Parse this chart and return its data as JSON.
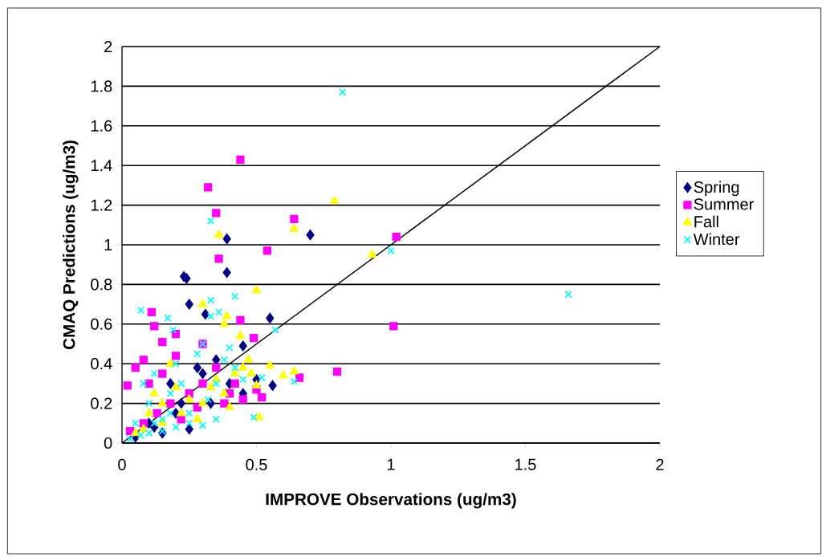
{
  "chart_data": {
    "type": "scatter",
    "xlabel": "IMPROVE Observations (ug/m3)",
    "ylabel": "CMAQ Predictions (ug/m3)",
    "xlim": [
      0,
      2
    ],
    "ylim": [
      0,
      2
    ],
    "xticks": [
      0,
      0.5,
      1,
      1.5,
      2
    ],
    "yticks": [
      0,
      0.2,
      0.4,
      0.6,
      0.8,
      1,
      1.2,
      1.4,
      1.6,
      1.8,
      2
    ],
    "grid": "y",
    "legend": "right",
    "series": [
      {
        "name": "Spring",
        "color": "#000080",
        "marker": "diamond",
        "x": [
          0.23,
          0.24,
          0.25,
          0.39,
          0.39,
          0.7,
          0.31,
          0.55,
          0.45,
          0.56,
          0.1,
          0.15,
          0.2,
          0.25,
          0.3,
          0.35,
          0.28,
          0.18,
          0.4,
          0.45,
          0.5,
          0.22,
          0.12,
          0.33,
          0.05
        ],
        "values": [
          0.84,
          0.83,
          0.7,
          0.86,
          1.03,
          1.05,
          0.65,
          0.63,
          0.49,
          0.29,
          0.1,
          0.05,
          0.15,
          0.07,
          0.35,
          0.42,
          0.38,
          0.3,
          0.3,
          0.25,
          0.32,
          0.2,
          0.08,
          0.2,
          0.03
        ]
      },
      {
        "name": "Summer",
        "color": "#ff00ff",
        "marker": "square",
        "x": [
          0.32,
          0.35,
          0.44,
          0.64,
          0.54,
          0.36,
          1.02,
          1.01,
          0.8,
          0.66,
          0.02,
          0.05,
          0.08,
          0.11,
          0.12,
          0.15,
          0.2,
          0.44,
          0.49,
          0.3,
          0.1,
          0.15,
          0.2,
          0.25,
          0.3,
          0.35,
          0.4,
          0.45,
          0.5,
          0.52,
          0.18,
          0.13,
          0.08,
          0.03,
          0.22,
          0.28,
          0.38,
          0.42
        ],
        "values": [
          1.29,
          1.16,
          1.43,
          1.13,
          0.97,
          0.93,
          1.04,
          0.59,
          0.36,
          0.33,
          0.29,
          0.38,
          0.42,
          0.66,
          0.59,
          0.51,
          0.55,
          0.62,
          0.53,
          0.5,
          0.3,
          0.35,
          0.44,
          0.25,
          0.3,
          0.38,
          0.25,
          0.22,
          0.27,
          0.23,
          0.2,
          0.15,
          0.1,
          0.06,
          0.12,
          0.18,
          0.2,
          0.3
        ]
      },
      {
        "name": "Fall",
        "color": "#ffff00",
        "marker": "triangle",
        "x": [
          0.79,
          0.64,
          0.36,
          0.93,
          0.5,
          0.3,
          0.39,
          0.38,
          0.44,
          0.55,
          0.64,
          0.6,
          0.5,
          0.51,
          0.05,
          0.1,
          0.12,
          0.15,
          0.18,
          0.2,
          0.22,
          0.25,
          0.28,
          0.3,
          0.33,
          0.35,
          0.38,
          0.4,
          0.42,
          0.45,
          0.48,
          0.47,
          0.15,
          0.08
        ],
        "values": [
          1.22,
          1.08,
          1.05,
          0.95,
          0.77,
          0.7,
          0.64,
          0.6,
          0.54,
          0.39,
          0.36,
          0.34,
          0.29,
          0.13,
          0.05,
          0.15,
          0.25,
          0.2,
          0.4,
          0.28,
          0.15,
          0.22,
          0.12,
          0.2,
          0.28,
          0.32,
          0.25,
          0.18,
          0.35,
          0.38,
          0.35,
          0.42,
          0.1,
          0.07
        ]
      },
      {
        "name": "Winter",
        "color": "#00ffff",
        "marker": "cross",
        "x": [
          0.82,
          1.66,
          1.0,
          0.33,
          0.07,
          0.33,
          0.42,
          0.17,
          0.19,
          0.33,
          0.36,
          0.57,
          0.49,
          0.64,
          0.52,
          0.05,
          0.08,
          0.1,
          0.12,
          0.15,
          0.18,
          0.2,
          0.22,
          0.25,
          0.28,
          0.3,
          0.32,
          0.35,
          0.38,
          0.4,
          0.42,
          0.45,
          0.1,
          0.15,
          0.2,
          0.25,
          0.3,
          0.12,
          0.07,
          0.03,
          0.35,
          0.18
        ],
        "values": [
          1.77,
          0.75,
          0.97,
          1.12,
          0.67,
          0.72,
          0.74,
          0.63,
          0.57,
          0.64,
          0.66,
          0.57,
          0.13,
          0.31,
          0.33,
          0.1,
          0.3,
          0.2,
          0.35,
          0.12,
          0.25,
          0.4,
          0.3,
          0.15,
          0.45,
          0.5,
          0.22,
          0.3,
          0.42,
          0.48,
          0.38,
          0.32,
          0.05,
          0.06,
          0.08,
          0.1,
          0.09,
          0.1,
          0.04,
          0.02,
          0.12,
          0.15
        ]
      },
      {
        "type": "line",
        "color": "#000000",
        "marker": "none",
        "x": [
          0,
          2
        ],
        "values": [
          0,
          2
        ]
      }
    ]
  }
}
